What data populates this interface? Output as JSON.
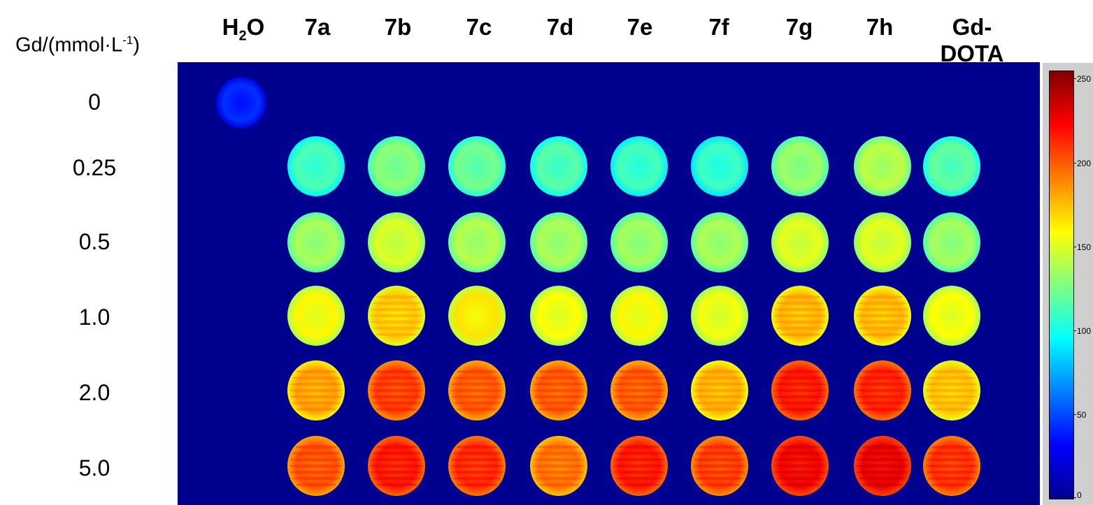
{
  "header": {
    "axis_title": "Gd/(mmol·L",
    "axis_title_sup": "-1",
    "axis_title_end": ")",
    "h2o_h": "H",
    "h2o_sub": "2",
    "h2o_o": "O",
    "samples": [
      "7a",
      "7b",
      "7c",
      "7d",
      "7e",
      "7f",
      "7g",
      "7h",
      "Gd-DOTA"
    ]
  },
  "row_labels": [
    "0",
    "0.25",
    "0.5",
    "1.0",
    "2.0",
    "5.0"
  ],
  "colorbar": {
    "min": 0,
    "max": 255,
    "tick_labels": [
      "250",
      "200",
      "150",
      "100",
      "50",
      "0"
    ],
    "colors": [
      "#00008f",
      "#0000ff",
      "#00ffff",
      "#80ff80",
      "#ffff00",
      "#ff0000",
      "#800000"
    ]
  },
  "plate": {
    "background_color": "#00008f",
    "intensity_by_row": [
      [
        40,
        null,
        null,
        null,
        null,
        null,
        null,
        null,
        null,
        null
      ],
      [
        null,
        112,
        128,
        122,
        115,
        110,
        108,
        132,
        140,
        118
      ],
      [
        null,
        135,
        148,
        138,
        136,
        134,
        136,
        150,
        150,
        134
      ],
      [
        null,
        158,
        170,
        163,
        156,
        158,
        154,
        175,
        174,
        156
      ],
      [
        null,
        180,
        205,
        198,
        198,
        198,
        176,
        215,
        212,
        172
      ],
      [
        null,
        200,
        215,
        210,
        192,
        215,
        205,
        222,
        225,
        208
      ]
    ]
  }
}
